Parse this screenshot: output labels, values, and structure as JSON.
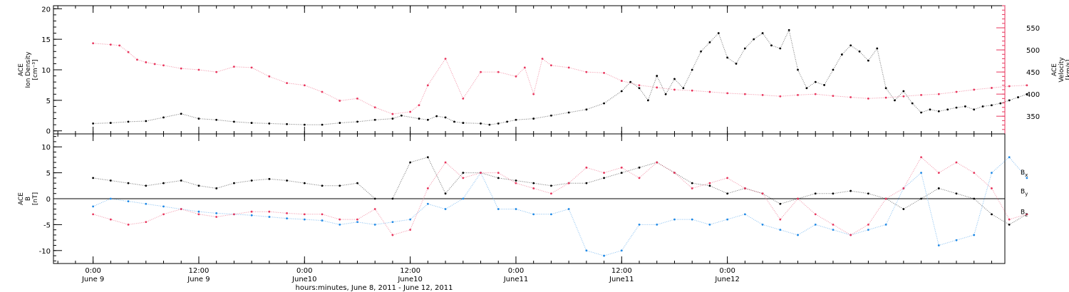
{
  "chart_data": [
    {
      "type": "scatter",
      "panel": "top",
      "left_axis": {
        "label_lines": [
          "ACE",
          "Ion Density",
          "[cm⁻³]"
        ],
        "ylim": [
          -0.5,
          20.5
        ],
        "ticks": [
          "0",
          "5",
          "10",
          "15",
          "20"
        ],
        "color": "#000000"
      },
      "right_axis": {
        "label_lines": [
          "ACE",
          "Velocity",
          "[km/s]"
        ],
        "ylim": [
          310,
          600
        ],
        "ticks": [
          "350",
          "400",
          "450",
          "500",
          "550"
        ],
        "color": "#e8365d"
      },
      "series": [
        {
          "name": "Ion Density",
          "axis": "left",
          "color": "#000000",
          "x": [
            0,
            2,
            4,
            6,
            8,
            10,
            12,
            14,
            16,
            18,
            20,
            22,
            24,
            26,
            28,
            30,
            32,
            34,
            35,
            37,
            38,
            39,
            40,
            41,
            42,
            44,
            45,
            46,
            47,
            48,
            50,
            52,
            54,
            56,
            58,
            60,
            61,
            62,
            63,
            64,
            65,
            66,
            67,
            68,
            69,
            70,
            71,
            72,
            73,
            74,
            75,
            76,
            77,
            78,
            79,
            80,
            81,
            82,
            83,
            84,
            85,
            86,
            87,
            88,
            89,
            90,
            91,
            92,
            93,
            94,
            95,
            96,
            97,
            98,
            99,
            100,
            101,
            102,
            103,
            104,
            105,
            106
          ],
          "y": [
            1.2,
            1.3,
            1.5,
            1.6,
            2.2,
            2.8,
            2.0,
            1.8,
            1.5,
            1.3,
            1.2,
            1.1,
            1.0,
            1.0,
            1.3,
            1.5,
            1.8,
            2.0,
            2.5,
            2.0,
            1.8,
            2.4,
            2.2,
            1.5,
            1.3,
            1.2,
            1.0,
            1.2,
            1.5,
            1.8,
            2.0,
            2.5,
            3.0,
            3.5,
            4.5,
            6.5,
            8.0,
            7.0,
            5.0,
            9.0,
            6.0,
            8.5,
            7.0,
            10.0,
            13.0,
            14.5,
            16.0,
            12.0,
            11.0,
            13.5,
            15.0,
            16.0,
            14.0,
            13.5,
            16.5,
            10.0,
            7.0,
            8.0,
            7.5,
            10.0,
            12.5,
            14.0,
            13.0,
            11.5,
            13.5,
            7.0,
            5.0,
            6.5,
            4.5,
            3.0,
            3.5,
            3.2,
            3.5,
            3.8,
            4.0,
            3.5,
            4.0,
            4.2,
            4.5,
            5.0,
            5.5,
            6.0
          ]
        },
        {
          "name": "Velocity",
          "axis": "right",
          "color": "#e8365d",
          "x": [
            0,
            2,
            3,
            4,
            5,
            6,
            7,
            8,
            10,
            12,
            14,
            16,
            18,
            20,
            22,
            24,
            26,
            28,
            30,
            32,
            34,
            36,
            37,
            38,
            40,
            42,
            44,
            46,
            48,
            49,
            50,
            51,
            52,
            54,
            56,
            58,
            60,
            62,
            64,
            66,
            68,
            70,
            72,
            74,
            76,
            78,
            80,
            82,
            84,
            86,
            88,
            90,
            92,
            94,
            96,
            98,
            100,
            102,
            104,
            106
          ],
          "y": [
            515,
            512,
            510,
            495,
            478,
            472,
            468,
            465,
            458,
            455,
            450,
            462,
            460,
            440,
            425,
            420,
            405,
            385,
            390,
            370,
            355,
            360,
            375,
            420,
            480,
            390,
            450,
            450,
            440,
            460,
            400,
            480,
            465,
            460,
            450,
            448,
            430,
            420,
            415,
            410,
            408,
            405,
            402,
            400,
            398,
            395,
            398,
            400,
            396,
            393,
            390,
            392,
            395,
            398,
            400,
            405,
            410,
            414,
            418,
            420
          ]
        }
      ]
    },
    {
      "type": "scatter",
      "panel": "bottom",
      "left_axis": {
        "label_lines": [
          "ACE",
          "B",
          "[nT]"
        ],
        "ylim": [
          -12.5,
          12.5
        ],
        "ticks": [
          "-10",
          "-5",
          "0",
          "5",
          "10"
        ],
        "color": "#000000"
      },
      "series": [
        {
          "name": "Bx",
          "color": "#000000",
          "x": [
            0,
            2,
            4,
            6,
            8,
            10,
            12,
            14,
            16,
            18,
            20,
            22,
            24,
            26,
            28,
            30,
            32,
            34,
            36,
            38,
            40,
            42,
            44,
            46,
            48,
            50,
            52,
            54,
            56,
            58,
            60,
            62,
            64,
            66,
            68,
            70,
            72,
            74,
            76,
            78,
            80,
            82,
            84,
            86,
            88,
            90,
            92,
            94,
            96,
            98,
            100,
            102,
            104,
            106
          ],
          "y": [
            4,
            3.5,
            3,
            2.5,
            3,
            3.5,
            2.5,
            2,
            3,
            3.5,
            3.8,
            3.5,
            3,
            2.5,
            2.5,
            3,
            0,
            0,
            7,
            8,
            1,
            5,
            5,
            4,
            3.5,
            3,
            2.5,
            3,
            3,
            4,
            5,
            6,
            7,
            5,
            3,
            2.5,
            1,
            2,
            1,
            -1,
            0,
            1,
            1,
            1.5,
            1,
            0,
            -2,
            0,
            2,
            1,
            0,
            -3,
            -5,
            -3
          ]
        },
        {
          "name": "By",
          "color": "#1e88e5",
          "x": [
            0,
            2,
            4,
            6,
            8,
            10,
            12,
            14,
            16,
            18,
            20,
            22,
            24,
            26,
            28,
            30,
            32,
            34,
            36,
            38,
            40,
            42,
            44,
            46,
            48,
            50,
            52,
            54,
            56,
            58,
            60,
            62,
            64,
            66,
            68,
            70,
            72,
            74,
            76,
            78,
            80,
            82,
            84,
            86,
            88,
            90,
            92,
            94,
            96,
            98,
            100,
            102,
            104,
            106
          ],
          "y": [
            -1.5,
            0,
            -0.5,
            -1,
            -1.5,
            -2,
            -2.5,
            -2.8,
            -3,
            -3.2,
            -3.5,
            -3.8,
            -4,
            -4.2,
            -5,
            -4.5,
            -5,
            -4.5,
            -4,
            -1,
            -2,
            0,
            5,
            -2,
            -2,
            -3,
            -3,
            -2,
            -10,
            -11,
            -10,
            -5,
            -5,
            -4,
            -4,
            -5,
            -4,
            -3,
            -5,
            -6,
            -7,
            -5,
            -6,
            -7,
            -6,
            -5,
            2,
            5,
            -9,
            -8,
            -7,
            5,
            8,
            4
          ]
        },
        {
          "name": "Bz",
          "color": "#e8365d",
          "x": [
            0,
            2,
            4,
            6,
            8,
            10,
            12,
            14,
            16,
            18,
            20,
            22,
            24,
            26,
            28,
            30,
            32,
            34,
            36,
            38,
            40,
            42,
            44,
            46,
            48,
            50,
            52,
            54,
            56,
            58,
            60,
            62,
            64,
            66,
            68,
            70,
            72,
            74,
            76,
            78,
            80,
            82,
            84,
            86,
            88,
            90,
            92,
            94,
            96,
            98,
            100,
            102,
            104,
            106
          ],
          "y": [
            -3,
            -4,
            -5,
            -4.5,
            -3,
            -2,
            -3,
            -3.5,
            -3,
            -2.5,
            -2.5,
            -2.8,
            -3,
            -3,
            -4,
            -4,
            -2,
            -7,
            -6,
            2,
            7,
            4,
            5,
            5,
            3,
            2,
            1,
            3,
            6,
            5,
            6,
            4,
            7,
            5,
            2,
            3,
            4,
            2,
            1,
            -4,
            0,
            -3,
            -5,
            -7,
            -5,
            0,
            2,
            8,
            5,
            7,
            5,
            2,
            -4,
            -3
          ]
        }
      ],
      "series_labels": [
        {
          "name": "B",
          "sub": "x",
          "color": "#000000",
          "y": 5.2
        },
        {
          "name": "B",
          "sub": "y",
          "color": "#1e88e5",
          "y": 1.6
        },
        {
          "name": "B",
          "sub": "z",
          "color": "#e8365d",
          "y": -2.4
        }
      ]
    }
  ],
  "x_axis": {
    "range_hours": [
      -4.5,
      103.5
    ],
    "ticks": [
      {
        "hour": 0,
        "top": "0:00",
        "bottom": "June 9"
      },
      {
        "hour": 12,
        "top": "12:00",
        "bottom": "June 9"
      },
      {
        "hour": 24,
        "top": "0:00",
        "bottom": "June10"
      },
      {
        "hour": 36,
        "top": "12:00",
        "bottom": "June10"
      },
      {
        "hour": 48,
        "top": "0:00",
        "bottom": "June11"
      },
      {
        "hour": 60,
        "top": "12:00",
        "bottom": "June11"
      },
      {
        "hour": 72,
        "top": "0:00",
        "bottom": "June12"
      }
    ],
    "label": "hours:minutes, June  8, 2011 - June 12, 2011"
  }
}
